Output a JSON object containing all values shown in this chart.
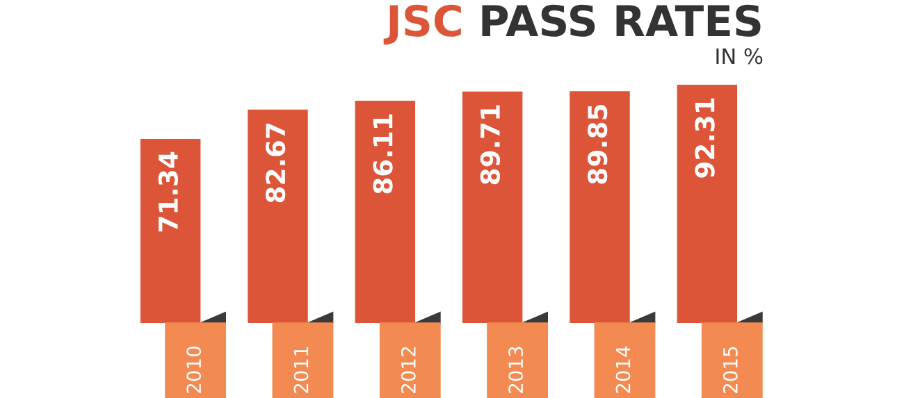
{
  "chart_data": {
    "type": "bar",
    "title": "JSC PASS RATES",
    "subtitle": "IN %",
    "categories": [
      "2010",
      "2011",
      "2012",
      "2013",
      "2014",
      "2015"
    ],
    "values": [
      71.34,
      82.67,
      86.11,
      89.71,
      89.85,
      92.31
    ],
    "color": "#dc5538",
    "data_labels": true
  }
}
